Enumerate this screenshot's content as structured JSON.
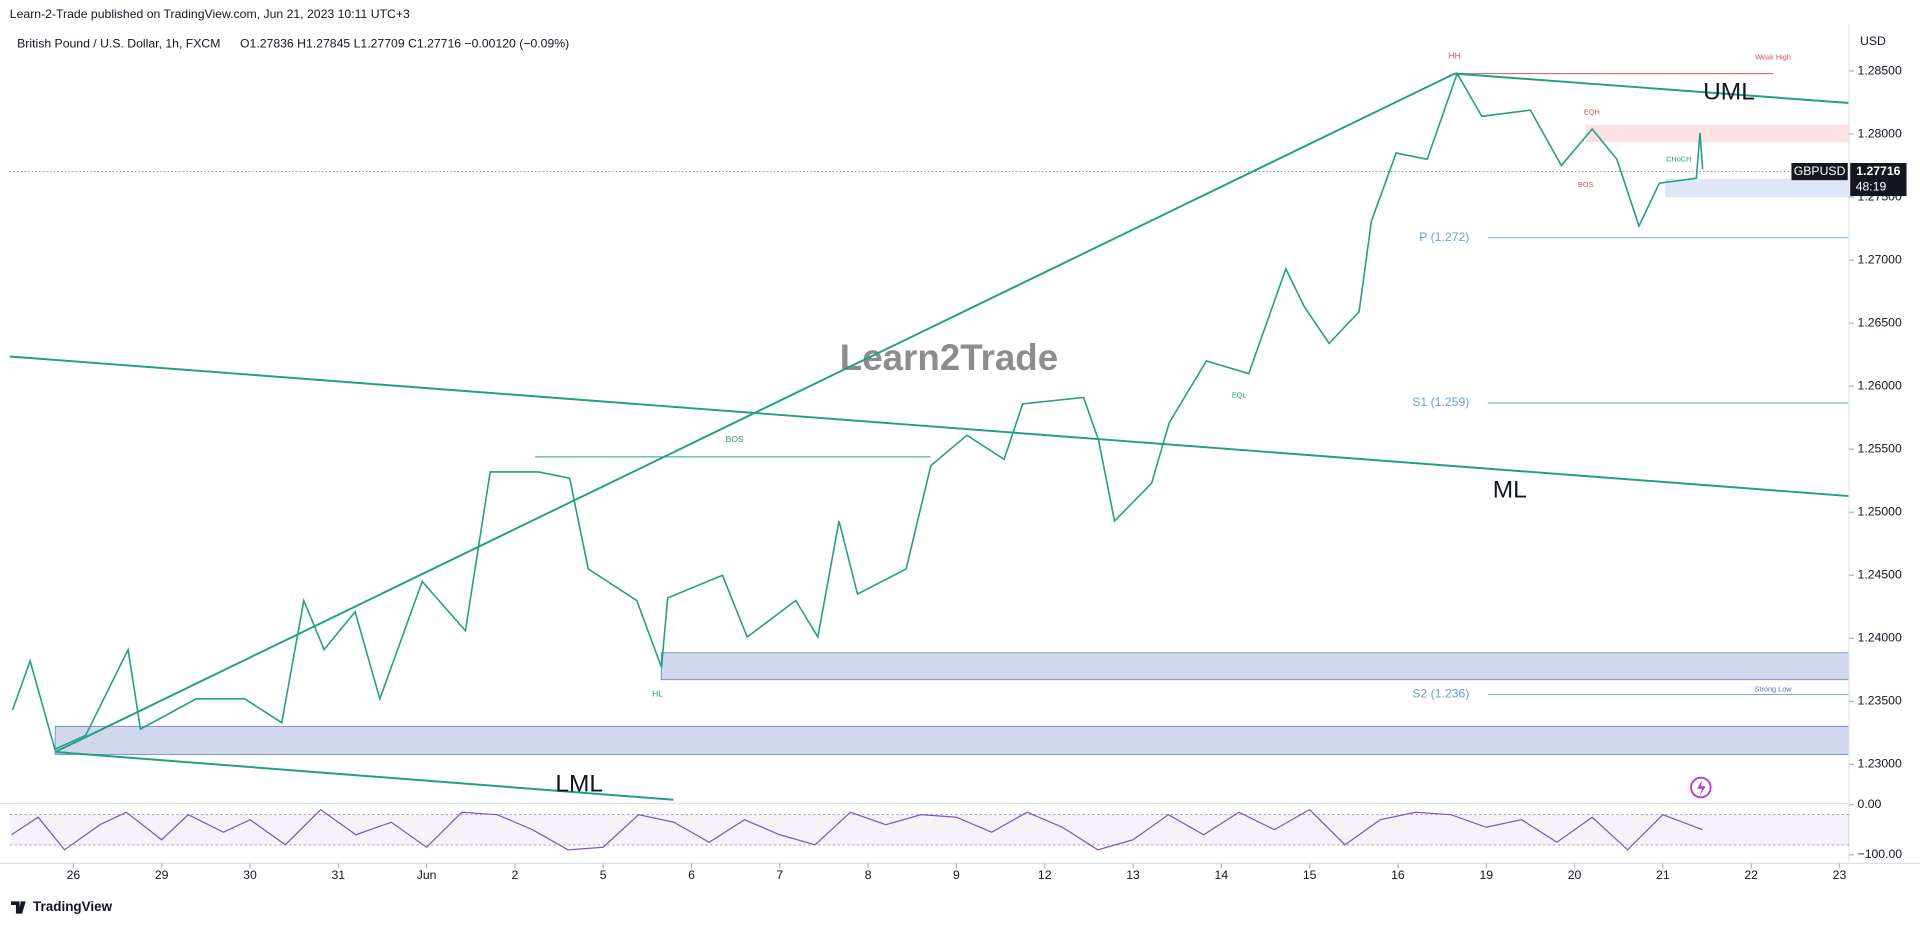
{
  "header": {
    "publisher": "Learn-2-Trade published on TradingView.com, Jun 21, 2023 10:11 UTC+3",
    "symbol": "British Pound / U.S. Dollar, 1h, FXCM",
    "ohlc": "O1.27836  H1.27845  L1.27709  C1.27716  −0.00120 (−0.09%)"
  },
  "chart_data": {
    "type": "line",
    "currency": "USD",
    "color": "#22a085",
    "x": [
      -0.69,
      -0.49,
      -0.21,
      0.14,
      0.62,
      0.76,
      1.39,
      1.94,
      2.36,
      2.61,
      2.84,
      3.19,
      3.47,
      3.95,
      4.44,
      4.72,
      5.27,
      5.62,
      5.83,
      6.38,
      6.66,
      6.73,
      7.35,
      7.63,
      8.18,
      8.43,
      8.67,
      8.88,
      9.43,
      9.71,
      10.12,
      10.54,
      10.75,
      11.44,
      11.61,
      11.79,
      12.21,
      12.41,
      12.83,
      13.31,
      13.73,
      13.94,
      14.22,
      14.56,
      14.7,
      14.98,
      15.33,
      15.67,
      15.95,
      16.5,
      16.85,
      17.2,
      17.48,
      17.73,
      17.96,
      18.38,
      18.42,
      18.45
    ],
    "values": [
      1.2343,
      1.2382,
      1.2312,
      1.2323,
      1.2391,
      1.2328,
      1.2352,
      1.2352,
      1.2333,
      1.243,
      1.2391,
      1.2421,
      1.2352,
      1.2445,
      1.2406,
      1.2532,
      1.2532,
      1.2527,
      1.2455,
      1.243,
      1.2377,
      1.2432,
      1.245,
      1.2401,
      1.243,
      1.2401,
      1.2493,
      1.2435,
      1.2455,
      1.2537,
      1.2561,
      1.2542,
      1.2586,
      1.2591,
      1.2557,
      1.2493,
      1.2523,
      1.2571,
      1.262,
      1.261,
      1.2693,
      1.2663,
      1.2634,
      1.2659,
      1.2731,
      1.2785,
      1.278,
      1.2848,
      1.2814,
      1.2819,
      1.2775,
      1.2804,
      1.278,
      1.2727,
      1.2761,
      1.2765,
      1.2801,
      1.2772
    ],
    "ylim": [
      1.227,
      1.288
    ],
    "yticks": [
      {
        "value": 1.23,
        "label": "1.23000"
      },
      {
        "value": 1.235,
        "label": "1.23500"
      },
      {
        "value": 1.24,
        "label": "1.24000"
      },
      {
        "value": 1.245,
        "label": "1.24500"
      },
      {
        "value": 1.25,
        "label": "1.25000"
      },
      {
        "value": 1.255,
        "label": "1.25500"
      },
      {
        "value": 1.26,
        "label": "1.26000"
      },
      {
        "value": 1.265,
        "label": "1.26500"
      },
      {
        "value": 1.27,
        "label": "1.27000"
      },
      {
        "value": 1.275,
        "label": "1.27500"
      },
      {
        "value": 1.28,
        "label": "1.28000"
      },
      {
        "value": 1.285,
        "label": "1.28500"
      }
    ],
    "xlim": [
      -0.72,
      20.08
    ],
    "xticks": [
      {
        "value": 0,
        "label": "26"
      },
      {
        "value": 1,
        "label": "29"
      },
      {
        "value": 2,
        "label": "30"
      },
      {
        "value": 3,
        "label": "31"
      },
      {
        "value": 4,
        "label": "Jun"
      },
      {
        "value": 5,
        "label": "2"
      },
      {
        "value": 6,
        "label": "5"
      },
      {
        "value": 7,
        "label": "6"
      },
      {
        "value": 8,
        "label": "7"
      },
      {
        "value": 9,
        "label": "8"
      },
      {
        "value": 10,
        "label": "9"
      },
      {
        "value": 11,
        "label": "12"
      },
      {
        "value": 12,
        "label": "13"
      },
      {
        "value": 13,
        "label": "14"
      },
      {
        "value": 14,
        "label": "15"
      },
      {
        "value": 15,
        "label": "16"
      },
      {
        "value": 16,
        "label": "19"
      },
      {
        "value": 17,
        "label": "20"
      },
      {
        "value": 18,
        "label": "21"
      },
      {
        "value": 19,
        "label": "22"
      },
      {
        "value": 20,
        "label": "23"
      }
    ],
    "last_price": {
      "symbol": "GBPUSD",
      "value": 1.27716,
      "countdown": "48:19"
    },
    "annotations": [
      "HH",
      "Weak High",
      "EQH",
      "CHoCH",
      "BOS",
      "EQL",
      "BOS",
      "HL",
      "Strong Low",
      "P (1.272)",
      "S1 (1.259)",
      "S2 (1.236)",
      "UML",
      "ML",
      "LML"
    ],
    "oscillator": {
      "x": [
        -0.7,
        -0.4,
        -0.1,
        0.3,
        0.6,
        1.0,
        1.3,
        1.7,
        2.0,
        2.4,
        2.8,
        3.2,
        3.6,
        4.0,
        4.4,
        4.8,
        5.2,
        5.6,
        6.0,
        6.4,
        6.8,
        7.2,
        7.6,
        8.0,
        8.4,
        8.8,
        9.2,
        9.6,
        10.0,
        10.4,
        10.8,
        11.2,
        11.6,
        12.0,
        12.4,
        12.8,
        13.2,
        13.6,
        14.0,
        14.4,
        14.8,
        15.2,
        15.6,
        16.0,
        16.4,
        16.8,
        17.2,
        17.6,
        18.0,
        18.45
      ],
      "values": [
        -60,
        -25,
        -90,
        -40,
        -15,
        -70,
        -20,
        -55,
        -30,
        -80,
        -10,
        -60,
        -35,
        -85,
        -15,
        -20,
        -50,
        -90,
        -85,
        -20,
        -35,
        -75,
        -30,
        -60,
        -80,
        -15,
        -40,
        -20,
        -25,
        -55,
        -15,
        -45,
        -90,
        -70,
        -20,
        -60,
        -15,
        -50,
        -10,
        -80,
        -30,
        -15,
        -20,
        -45,
        -30,
        -75,
        -25,
        -90,
        -20,
        -50
      ],
      "color": "#7e57c2",
      "ylim": [
        -105,
        5
      ],
      "yticks": [
        {
          "value": 0,
          "label": "0.00"
        },
        {
          "value": -100,
          "label": "−100.00"
        }
      ]
    }
  },
  "watermark": "Learn2Trade",
  "footer": "TradingView"
}
